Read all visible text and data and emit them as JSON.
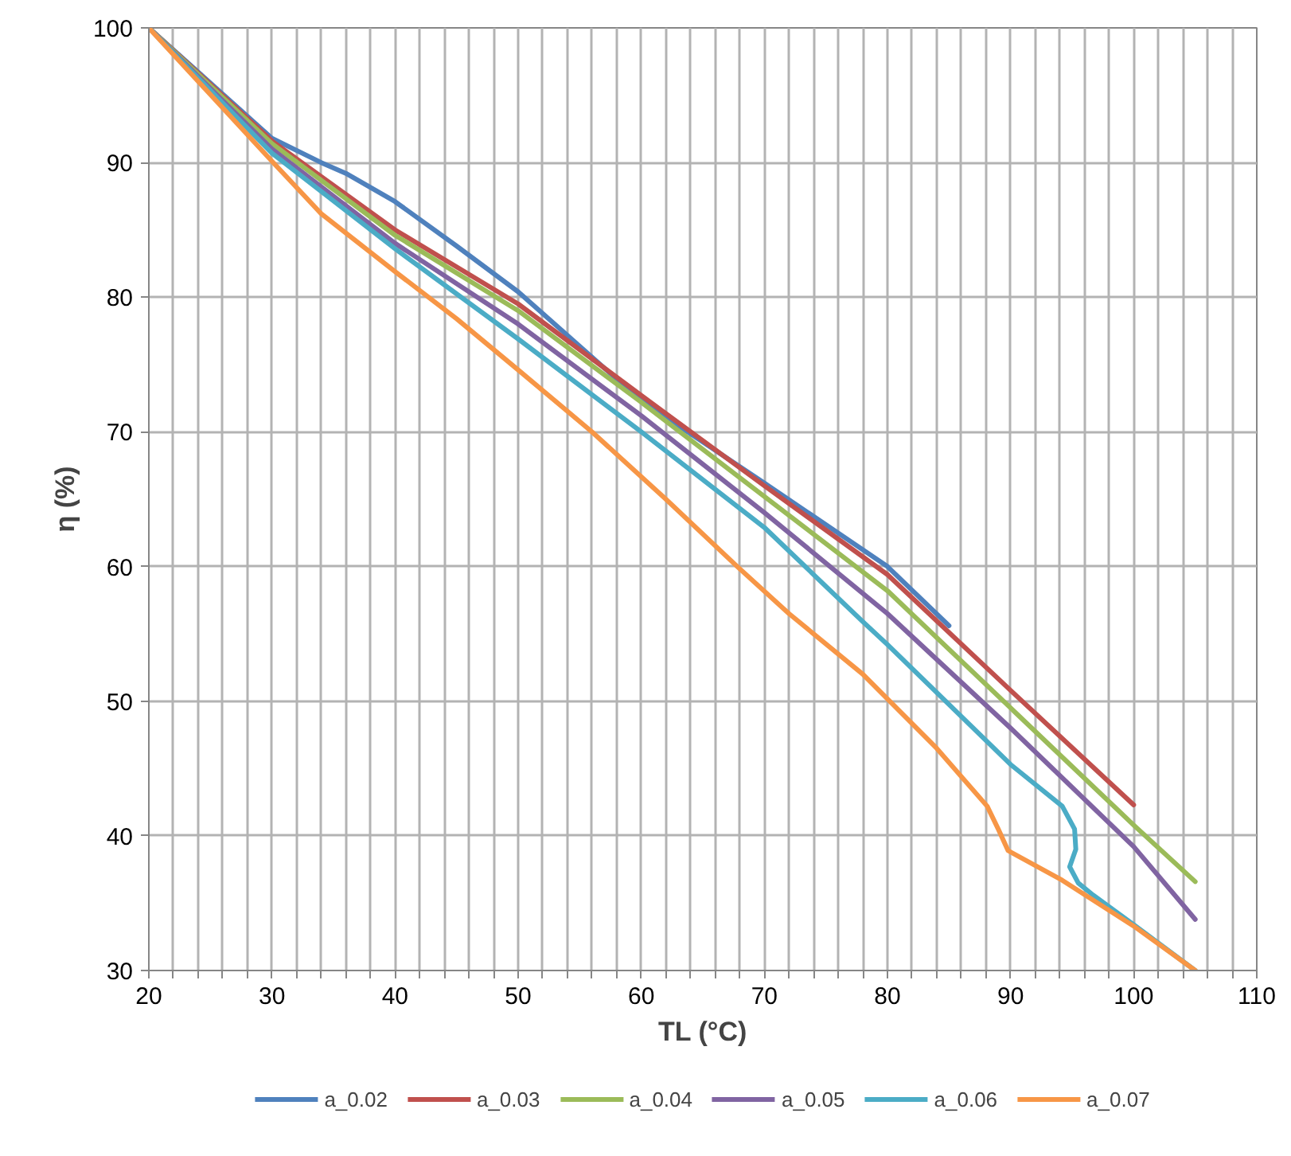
{
  "chart_data": {
    "type": "line",
    "xlabel": "TL (°C)",
    "ylabel": "η (%)",
    "xlim": [
      20,
      110
    ],
    "ylim": [
      30,
      100
    ],
    "xticks": [
      20,
      {
        "value": 22,
        "label": null
      },
      {
        "value": 24,
        "label": null
      },
      {
        "value": 26,
        "label": null
      },
      {
        "value": 28,
        "label": null
      },
      30,
      {
        "value": 32,
        "label": null
      },
      {
        "value": 34,
        "label": null
      },
      {
        "value": 36,
        "label": null
      },
      {
        "value": 38,
        "label": null
      },
      40,
      {
        "value": 42,
        "label": null
      },
      {
        "value": 44,
        "label": null
      },
      {
        "value": 46,
        "label": null
      },
      {
        "value": 48,
        "label": null
      },
      50,
      {
        "value": 52,
        "label": null
      },
      {
        "value": 54,
        "label": null
      },
      {
        "value": 56,
        "label": null
      },
      {
        "value": 58,
        "label": null
      },
      60,
      {
        "value": 62,
        "label": null
      },
      {
        "value": 64,
        "label": null
      },
      {
        "value": 66,
        "label": null
      },
      {
        "value": 68,
        "label": null
      },
      70,
      {
        "value": 72,
        "label": null
      },
      {
        "value": 74,
        "label": null
      },
      {
        "value": 76,
        "label": null
      },
      {
        "value": 78,
        "label": null
      },
      80,
      {
        "value": 82,
        "label": null
      },
      {
        "value": 84,
        "label": null
      },
      {
        "value": 86,
        "label": null
      },
      {
        "value": 88,
        "label": null
      },
      90,
      {
        "value": 92,
        "label": null
      },
      {
        "value": 94,
        "label": null
      },
      {
        "value": 96,
        "label": null
      },
      {
        "value": 98,
        "label": null
      },
      100,
      {
        "value": 102,
        "label": null
      },
      {
        "value": 104,
        "label": null
      },
      {
        "value": 106,
        "label": null
      },
      {
        "value": 108,
        "label": null
      },
      110
    ],
    "yticks": [
      30,
      40,
      50,
      60,
      70,
      80,
      90,
      100
    ],
    "grid": true,
    "legend": "bottom",
    "marker": "none",
    "line_style": "solid",
    "series": [
      {
        "name": "a_0.02",
        "color": "#4f81bd",
        "x": [
          20,
          30,
          34,
          36,
          40,
          45,
          50,
          60,
          70,
          80,
          85
        ],
        "values": [
          100,
          91.8,
          90.0,
          89.2,
          87.1,
          83.8,
          80.4,
          72.3,
          66.2,
          60.0,
          55.6
        ]
      },
      {
        "name": "a_0.03",
        "color": "#c0504d",
        "x": [
          20,
          30,
          40,
          50,
          60,
          70,
          80,
          90,
          100
        ],
        "values": [
          100,
          91.6,
          85.0,
          79.5,
          72.7,
          66.0,
          59.4,
          50.8,
          42.3
        ]
      },
      {
        "name": "a_0.04",
        "color": "#9bbb59",
        "x": [
          20,
          30,
          40,
          50,
          60,
          70,
          80,
          90,
          100,
          105
        ],
        "values": [
          100,
          91.4,
          84.6,
          79.0,
          72.2,
          65.2,
          58.2,
          49.5,
          40.8,
          36.6
        ]
      },
      {
        "name": "a_0.05",
        "color": "#8064a2",
        "x": [
          20,
          30,
          40,
          50,
          60,
          70,
          80,
          90,
          100,
          105
        ],
        "values": [
          100,
          91.0,
          84.0,
          78.0,
          71.2,
          64.0,
          56.5,
          48.0,
          39.2,
          33.8
        ]
      },
      {
        "name": "a_0.06",
        "color": "#4bacc6",
        "x": [
          20,
          30,
          40,
          50,
          60,
          70,
          78,
          80,
          90,
          94.2,
          95.2,
          95.3,
          94.8,
          95.5,
          96.7,
          100,
          105
        ],
        "values": [
          100,
          90.7,
          83.6,
          76.9,
          70.0,
          62.9,
          55.9,
          54.2,
          45.3,
          42.2,
          40.5,
          39.0,
          37.7,
          36.5,
          35.6,
          33.4,
          30
        ]
      },
      {
        "name": "a_0.07",
        "color": "#f79646",
        "x": [
          20,
          30,
          34,
          40,
          45,
          50,
          56,
          62,
          67.8,
          72,
          78,
          84,
          88.1,
          89,
          89.8,
          94.2,
          100,
          105
        ],
        "values": [
          100,
          90.1,
          86.2,
          81.9,
          78.4,
          74.6,
          70,
          65,
          60,
          56.5,
          52,
          46.5,
          42.2,
          40.5,
          38.9,
          36.7,
          33.3,
          30
        ]
      }
    ]
  }
}
